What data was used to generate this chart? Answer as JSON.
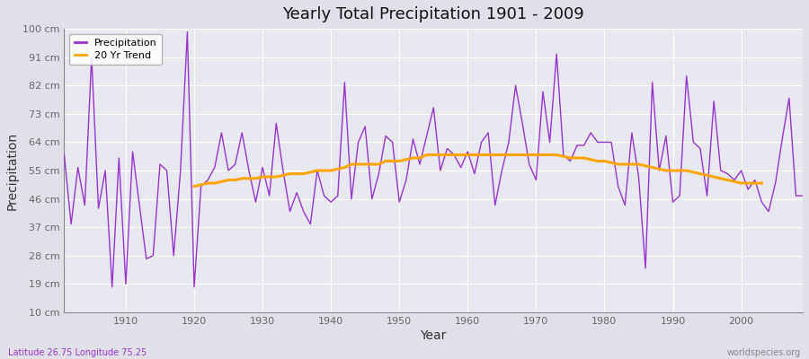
{
  "title": "Yearly Total Precipitation 1901 - 2009",
  "xlabel": "Year",
  "ylabel": "Precipitation",
  "subtitle_left": "Latitude 26.75 Longitude 75.25",
  "subtitle_right": "worldspecies.org",
  "line_color": "#9933CC",
  "trend_color": "#FFA500",
  "fig_bg_color": "#E0E0E8",
  "plot_bg_color": "#E8E8F0",
  "grid_color": "#FFFFFF",
  "ylim": [
    10,
    100
  ],
  "yticks": [
    10,
    19,
    28,
    37,
    46,
    55,
    64,
    73,
    82,
    91,
    100
  ],
  "ytick_labels": [
    "10 cm",
    "19 cm",
    "28 cm",
    "37 cm",
    "46 cm",
    "55 cm",
    "64 cm",
    "73 cm",
    "82 cm",
    "91 cm",
    "100 cm"
  ],
  "years": [
    1901,
    1902,
    1903,
    1904,
    1905,
    1906,
    1907,
    1908,
    1909,
    1910,
    1911,
    1912,
    1913,
    1914,
    1915,
    1916,
    1917,
    1918,
    1919,
    1920,
    1921,
    1922,
    1923,
    1924,
    1925,
    1926,
    1927,
    1928,
    1929,
    1930,
    1931,
    1932,
    1933,
    1934,
    1935,
    1936,
    1937,
    1938,
    1939,
    1940,
    1941,
    1942,
    1943,
    1944,
    1945,
    1946,
    1947,
    1948,
    1949,
    1950,
    1951,
    1952,
    1953,
    1954,
    1955,
    1956,
    1957,
    1958,
    1959,
    1960,
    1961,
    1962,
    1963,
    1964,
    1965,
    1966,
    1967,
    1968,
    1969,
    1970,
    1971,
    1972,
    1973,
    1974,
    1975,
    1976,
    1977,
    1978,
    1979,
    1980,
    1981,
    1982,
    1983,
    1984,
    1985,
    1986,
    1987,
    1988,
    1989,
    1990,
    1991,
    1992,
    1993,
    1994,
    1995,
    1996,
    1997,
    1998,
    1999,
    2000,
    2001,
    2002,
    2003,
    2004,
    2005,
    2006,
    2007,
    2008,
    2009
  ],
  "precip": [
    60,
    38,
    56,
    44,
    91,
    43,
    55,
    18,
    59,
    19,
    61,
    44,
    27,
    28,
    57,
    55,
    28,
    55,
    99,
    18,
    50,
    52,
    56,
    67,
    55,
    57,
    67,
    55,
    45,
    56,
    47,
    70,
    55,
    42,
    48,
    42,
    38,
    55,
    47,
    45,
    47,
    83,
    46,
    64,
    69,
    46,
    54,
    66,
    64,
    45,
    52,
    65,
    57,
    66,
    75,
    55,
    62,
    60,
    56,
    61,
    54,
    64,
    67,
    44,
    55,
    64,
    82,
    70,
    57,
    52,
    80,
    64,
    92,
    60,
    58,
    63,
    63,
    67,
    64,
    64,
    64,
    50,
    44,
    67,
    53,
    24,
    83,
    55,
    66,
    45,
    47,
    85,
    64,
    62,
    47,
    77,
    55,
    54,
    52,
    55,
    49,
    52,
    45,
    42,
    51,
    65,
    78,
    47,
    47
  ],
  "trend": [
    null,
    null,
    null,
    null,
    null,
    null,
    null,
    null,
    null,
    null,
    null,
    null,
    null,
    null,
    null,
    null,
    null,
    null,
    null,
    50,
    50.5,
    51,
    51,
    51.5,
    52,
    52,
    52.5,
    52.5,
    52.5,
    53,
    53,
    53,
    53.5,
    54,
    54,
    54,
    54.5,
    55,
    55,
    55,
    55.5,
    56,
    57,
    57,
    57,
    57,
    57,
    58,
    58,
    58,
    58.5,
    59,
    59,
    60,
    60,
    60,
    60,
    60,
    60,
    60,
    60,
    60,
    60,
    60,
    60,
    60,
    60,
    60,
    60,
    60,
    60,
    60,
    60,
    59.5,
    59,
    59,
    59,
    58.5,
    58,
    58,
    57.5,
    57,
    57,
    57,
    57,
    56.5,
    56,
    55.5,
    55,
    55,
    55,
    55,
    54.5,
    54,
    53.5,
    53,
    52.5,
    52,
    51.5,
    51,
    51,
    51,
    51
  ]
}
